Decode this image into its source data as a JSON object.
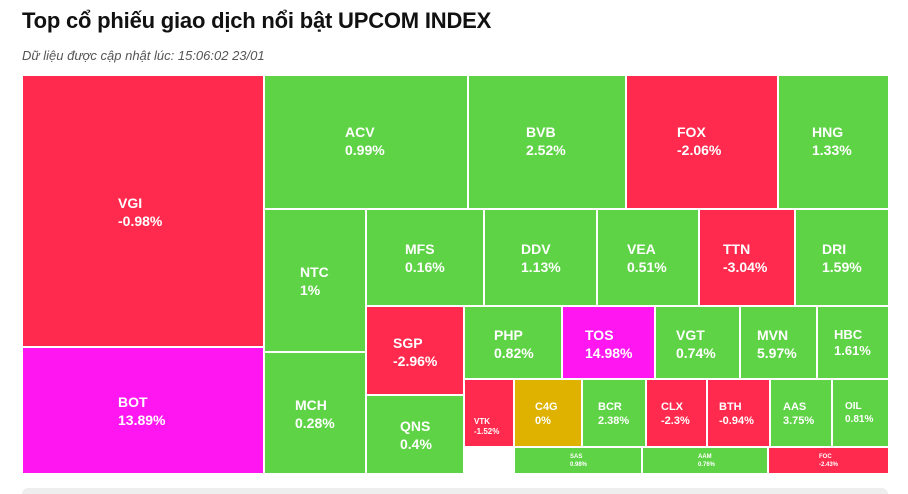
{
  "header": {
    "title": "Top cổ phiếu giao dịch nổi bật UPCOM INDEX",
    "updated_label": "Dữ liệu được cập nhật lúc: 15:06:02 23/01"
  },
  "colors": {
    "up": "#5fd346",
    "down": "#ff2a4d",
    "ceiling": "#ff16f0",
    "flat": "#dfb200",
    "border": "#ffffff"
  },
  "chart_data": {
    "type": "treemap",
    "title": "Top cổ phiếu giao dịch nổi bật UPCOM INDEX",
    "items": [
      {
        "symbol": "VGI",
        "change": "-0.98%",
        "status": "down"
      },
      {
        "symbol": "BOT",
        "change": "13.89%",
        "status": "ceiling"
      },
      {
        "symbol": "ACV",
        "change": "0.99%",
        "status": "up"
      },
      {
        "symbol": "BVB",
        "change": "2.52%",
        "status": "up"
      },
      {
        "symbol": "FOX",
        "change": "-2.06%",
        "status": "down"
      },
      {
        "symbol": "HNG",
        "change": "1.33%",
        "status": "up"
      },
      {
        "symbol": "NTC",
        "change": "1%",
        "status": "up"
      },
      {
        "symbol": "MFS",
        "change": "0.16%",
        "status": "up"
      },
      {
        "symbol": "DDV",
        "change": "1.13%",
        "status": "up"
      },
      {
        "symbol": "VEA",
        "change": "0.51%",
        "status": "up"
      },
      {
        "symbol": "TTN",
        "change": "-3.04%",
        "status": "down"
      },
      {
        "symbol": "DRI",
        "change": "1.59%",
        "status": "up"
      },
      {
        "symbol": "MCH",
        "change": "0.28%",
        "status": "up"
      },
      {
        "symbol": "SGP",
        "change": "-2.96%",
        "status": "down"
      },
      {
        "symbol": "PHP",
        "change": "0.82%",
        "status": "up"
      },
      {
        "symbol": "TOS",
        "change": "14.98%",
        "status": "ceiling"
      },
      {
        "symbol": "VGT",
        "change": "0.74%",
        "status": "up"
      },
      {
        "symbol": "MVN",
        "change": "5.97%",
        "status": "up"
      },
      {
        "symbol": "HBC",
        "change": "1.61%",
        "status": "up"
      },
      {
        "symbol": "QNS",
        "change": "0.4%",
        "status": "up"
      },
      {
        "symbol": "VTK",
        "change": "-1.52%",
        "status": "down"
      },
      {
        "symbol": "C4G",
        "change": "0%",
        "status": "flat"
      },
      {
        "symbol": "BCR",
        "change": "2.38%",
        "status": "up"
      },
      {
        "symbol": "CLX",
        "change": "-2.3%",
        "status": "down"
      },
      {
        "symbol": "BTH",
        "change": "-0.94%",
        "status": "down"
      },
      {
        "symbol": "AAS",
        "change": "3.75%",
        "status": "up"
      },
      {
        "symbol": "OIL",
        "change": "0.81%",
        "status": "up"
      },
      {
        "symbol": "SAS",
        "change": "0.98%",
        "status": "up"
      },
      {
        "symbol": "AAM",
        "change": "0.76%",
        "status": "up"
      },
      {
        "symbol": "FOC",
        "change": "-2.43%",
        "status": "down"
      }
    ]
  }
}
